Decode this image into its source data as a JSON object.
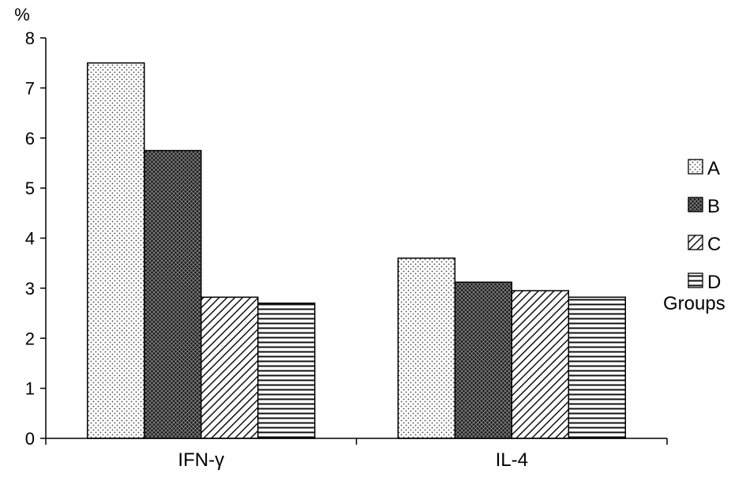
{
  "chart_data": {
    "type": "bar",
    "categories": [
      "IFN-γ",
      "IL-4"
    ],
    "series": [
      {
        "name": "A",
        "values": [
          7.5,
          3.6
        ],
        "pattern": "dots"
      },
      {
        "name": "B",
        "values": [
          5.75,
          3.12
        ],
        "pattern": "crosshatch"
      },
      {
        "name": "C",
        "values": [
          2.82,
          2.95
        ],
        "pattern": "diagonal"
      },
      {
        "name": "D",
        "values": [
          2.7,
          2.82
        ],
        "pattern": "horizontal"
      }
    ],
    "ylabel": "%",
    "ylim": [
      0,
      8
    ],
    "yticks": [
      0,
      1,
      2,
      3,
      4,
      5,
      6,
      7,
      8
    ],
    "legend_title": "Groups",
    "legend_position": "right",
    "grid": false
  }
}
